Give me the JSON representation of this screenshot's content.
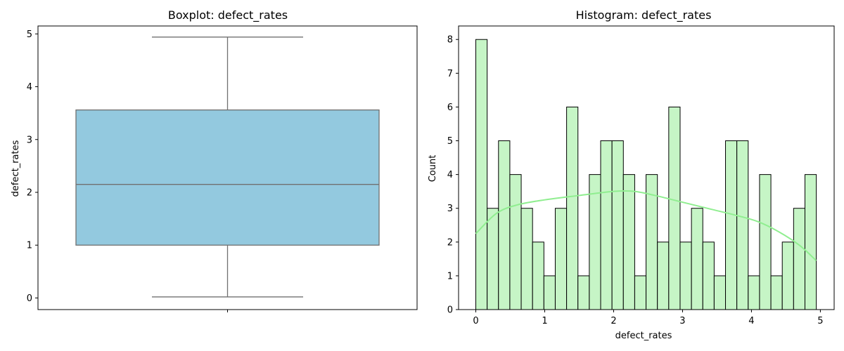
{
  "chart_data": [
    {
      "type": "box",
      "title": "Boxplot: defect_rates",
      "xlabel": "",
      "ylabel": "defect_rates",
      "ylim": [
        -0.22,
        5.15
      ],
      "yticks": [
        0,
        1,
        2,
        3,
        4,
        5
      ],
      "box": {
        "whisker_low": 0.02,
        "q1": 1.0,
        "median": 2.15,
        "q3": 3.56,
        "whisker_high": 4.94
      },
      "colors": {
        "box_fill": "#93c9df",
        "box_edge": "#707070"
      }
    },
    {
      "type": "histogram",
      "title": "Histogram: defect_rates",
      "xlabel": "defect_rates",
      "ylabel": "Count",
      "xlim": [
        -0.25,
        5.2
      ],
      "ylim": [
        0,
        8.4
      ],
      "xticks": [
        0,
        1,
        2,
        3,
        4,
        5
      ],
      "yticks": [
        0,
        1,
        2,
        3,
        4,
        5,
        6,
        7,
        8
      ],
      "bin_start": 0.0,
      "bin_width": 0.1647,
      "counts": [
        8,
        3,
        5,
        4,
        3,
        2,
        1,
        3,
        6,
        1,
        4,
        5,
        5,
        4,
        1,
        4,
        2,
        6,
        2,
        3,
        2,
        1,
        5,
        5,
        1,
        4,
        1,
        2,
        3,
        4
      ],
      "kde": {
        "x": [
          0.0,
          0.3,
          0.6,
          1.0,
          1.5,
          2.0,
          2.3,
          2.6,
          3.0,
          3.4,
          3.8,
          4.1,
          4.4,
          4.7,
          4.94
        ],
        "y": [
          2.25,
          2.85,
          3.1,
          3.25,
          3.38,
          3.5,
          3.5,
          3.38,
          3.18,
          2.98,
          2.78,
          2.6,
          2.3,
          1.9,
          1.45
        ]
      },
      "colors": {
        "bar_fill": "#c6f5c6",
        "bar_edge": "#000000",
        "kde_line": "#90ee90"
      }
    }
  ]
}
